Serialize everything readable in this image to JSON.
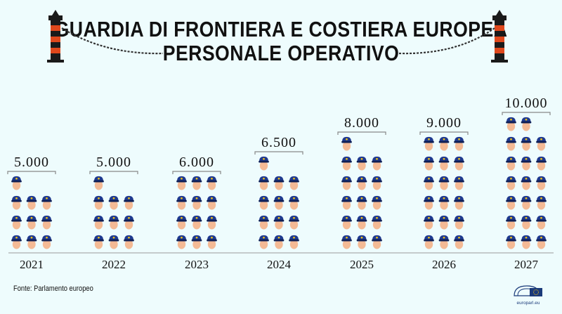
{
  "title_line1": "GUARDIA DI FRONTIERA E COSTIERA EUROPEA",
  "title_line2": "PERSONALE OPERATIVO",
  "source": "Fonte: Parlamento europeo",
  "brand": "europarl.eu",
  "colors": {
    "cap": "#1f3a8f",
    "visor": "#0f1f55",
    "badge": "#f2c318",
    "face": "#f4ba95",
    "post_red": "#e0481c",
    "post_dark": "#1a1a1a",
    "background": "#eefcfd"
  },
  "icons": [
    "border-post-icon",
    "border-chain-icon",
    "officer-icon",
    "parliament-logo-icon"
  ],
  "chart_data": {
    "type": "bar",
    "unit_per_icon": 500,
    "categories": [
      "2021",
      "2022",
      "2023",
      "2024",
      "2025",
      "2026",
      "2027"
    ],
    "values": [
      5000,
      5000,
      6000,
      6500,
      8000,
      9000,
      10000
    ],
    "value_labels": [
      "5.000",
      "5.000",
      "6.000",
      "6.500",
      "8.000",
      "9.000",
      "10.000"
    ]
  }
}
